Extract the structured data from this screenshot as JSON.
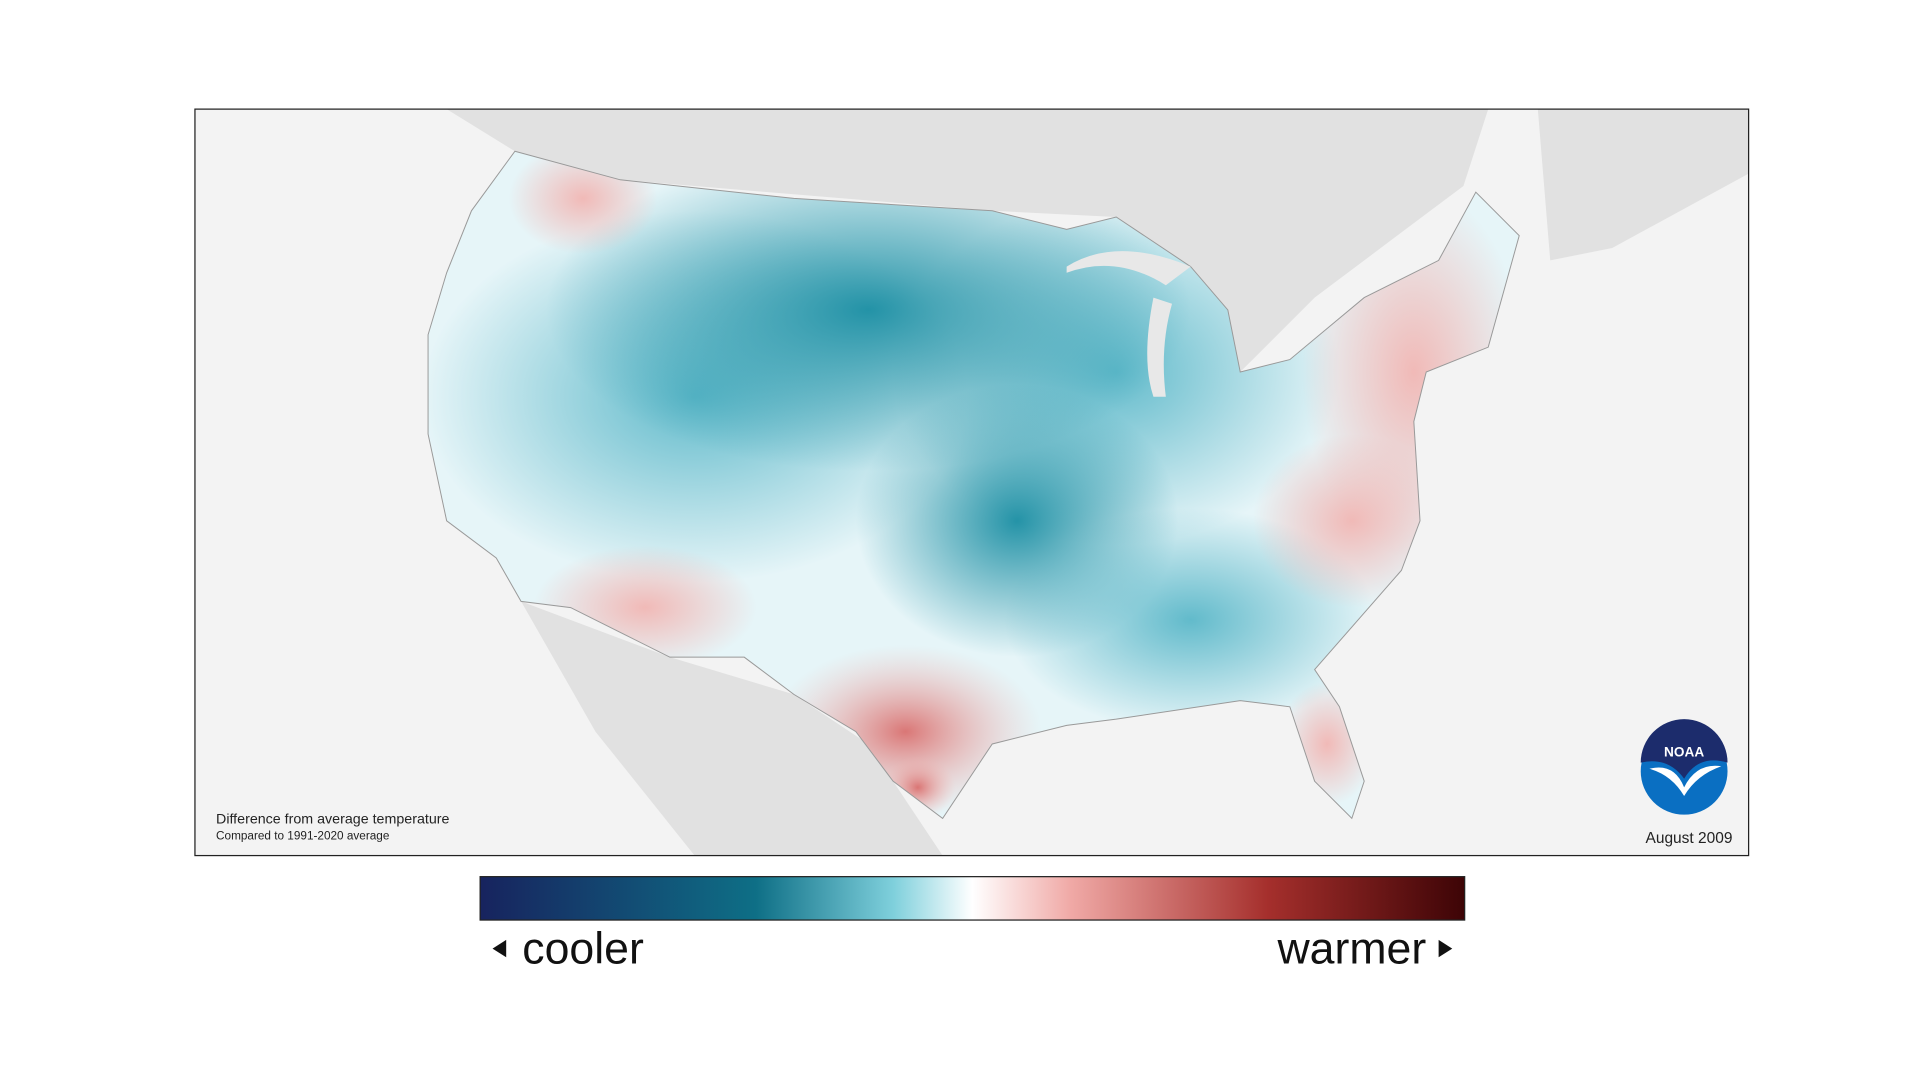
{
  "map": {
    "caption": "Difference from average temperature",
    "subcaption": "Compared to 1991-2020 average",
    "date": "August 2009",
    "logo": "NOAA"
  },
  "legend": {
    "low": "cooler",
    "high": "warmer"
  }
}
